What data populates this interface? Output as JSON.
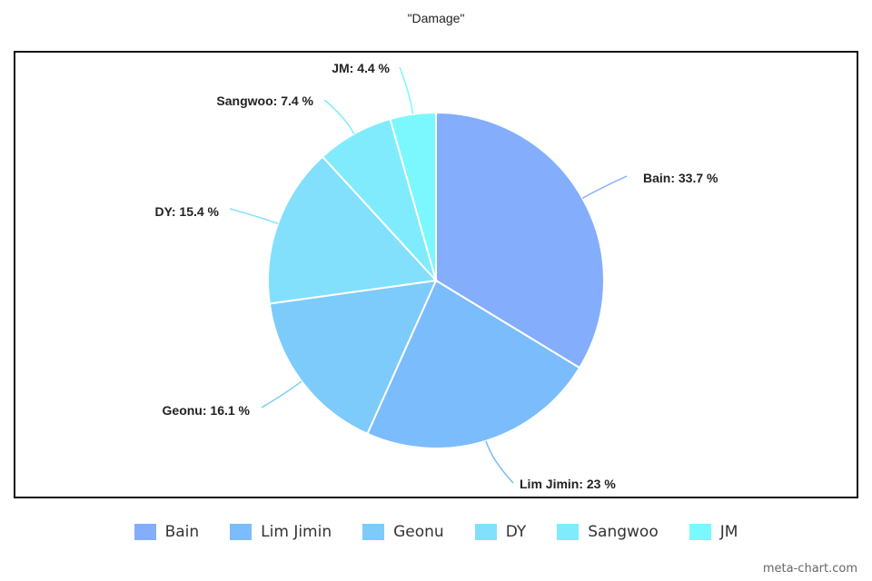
{
  "chart_data": {
    "type": "pie",
    "title": "\"Damage\"",
    "slices": [
      {
        "name": "Bain",
        "value": 33.7,
        "label": "Bain: 33.7 %",
        "color": "#84aefc"
      },
      {
        "name": "Lim Jimin",
        "value": 23,
        "label": "Lim Jimin: 23 %",
        "color": "#7bbcfc"
      },
      {
        "name": "Geonu",
        "value": 16.1,
        "label": "Geonu: 16.1 %",
        "color": "#7ccbfb"
      },
      {
        "name": "DY",
        "value": 15.4,
        "label": "DY: 15.4 %",
        "color": "#82e0fd"
      },
      {
        "name": "Sangwoo",
        "value": 7.4,
        "label": "Sangwoo: 7.4 %",
        "color": "#80ebfd"
      },
      {
        "name": "JM",
        "value": 4.4,
        "label": "JM: 4.4 %",
        "color": "#7af8fd"
      }
    ],
    "legend_position": "bottom"
  },
  "watermark": "meta-chart.com"
}
